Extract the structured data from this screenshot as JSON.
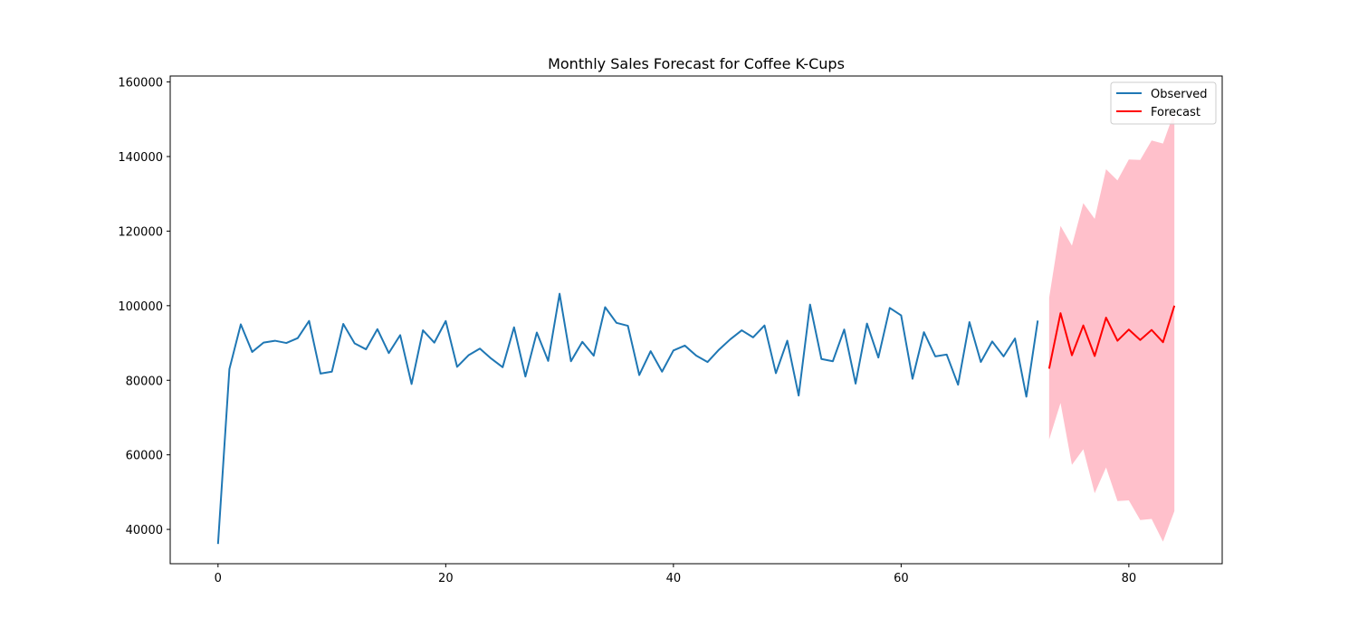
{
  "chart_data": {
    "type": "line",
    "title": "Monthly Sales Forecast for Coffee K-Cups",
    "xlabel": "",
    "ylabel": "",
    "xlim": [
      -4.2,
      88.2
    ],
    "ylim": [
      30800,
      161600
    ],
    "x_ticks": [
      0,
      20,
      40,
      60,
      80
    ],
    "x_tick_labels": [
      "0",
      "20",
      "40",
      "60",
      "80"
    ],
    "y_ticks": [
      40000,
      60000,
      80000,
      100000,
      120000,
      140000,
      160000
    ],
    "y_tick_labels": [
      "40000",
      "60000",
      "80000",
      "100000",
      "120000",
      "140000",
      "160000"
    ],
    "grid": false,
    "legend_position": "top-right",
    "colors": {
      "observed": "#1f77b4",
      "forecast": "#ff0000",
      "confidence_band": "#ffc0cb"
    },
    "series": [
      {
        "name": "Observed",
        "x": [
          0,
          1,
          2,
          3,
          4,
          5,
          6,
          7,
          8,
          9,
          10,
          11,
          12,
          13,
          14,
          15,
          16,
          17,
          18,
          19,
          20,
          21,
          22,
          23,
          24,
          25,
          26,
          27,
          28,
          29,
          30,
          31,
          32,
          33,
          34,
          35,
          36,
          37,
          38,
          39,
          40,
          41,
          42,
          43,
          44,
          45,
          46,
          47,
          48,
          49,
          50,
          51,
          52,
          53,
          54,
          55,
          56,
          57,
          58,
          59,
          60,
          61,
          62,
          63,
          64,
          65,
          66,
          67,
          68,
          69,
          70,
          71,
          72
        ],
        "values": [
          36100,
          83000,
          95000,
          87600,
          90100,
          90600,
          90000,
          91300,
          95900,
          81800,
          82300,
          95100,
          89900,
          88300,
          93700,
          87300,
          92100,
          79000,
          93400,
          90100,
          95900,
          83600,
          86700,
          88500,
          85800,
          83500,
          94200,
          81000,
          92800,
          85200,
          103200,
          85100,
          90300,
          86600,
          99600,
          95400,
          94600,
          81400,
          87800,
          82300,
          88000,
          89300,
          86600,
          84900,
          88200,
          91000,
          93400,
          91500,
          94700,
          81900,
          90600,
          75900,
          100300,
          85700,
          85100,
          93600,
          79100,
          95200,
          86100,
          99400,
          97400,
          80400,
          92900,
          86400,
          86900,
          78800,
          95600,
          84900,
          90400,
          86400,
          91200,
          75600,
          96000
        ]
      },
      {
        "name": "Forecast",
        "x": [
          73,
          74,
          75,
          76,
          77,
          78,
          79,
          80,
          81,
          82,
          83,
          84
        ],
        "values": [
          83100,
          98000,
          86700,
          94700,
          86500,
          96800,
          90600,
          93600,
          90800,
          93500,
          90200,
          100000
        ],
        "lower": [
          64100,
          73900,
          57300,
          61500,
          49700,
          56600,
          47600,
          47800,
          42500,
          42800,
          36700,
          44900
        ],
        "upper": [
          102100,
          121400,
          116100,
          127500,
          123300,
          136600,
          133600,
          139200,
          139100,
          144300,
          143500,
          152000
        ]
      }
    ]
  }
}
